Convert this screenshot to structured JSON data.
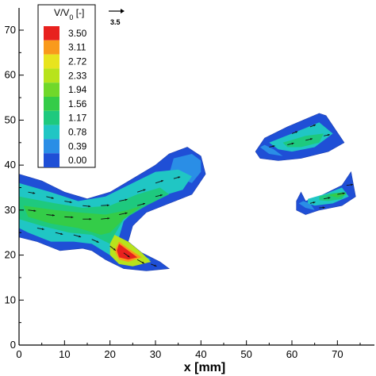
{
  "chart_data": {
    "type": "heatmap",
    "xlabel": "x [mm]",
    "ylabel": "",
    "xlim": [
      0,
      78
    ],
    "ylim": [
      0,
      74
    ],
    "x_ticks": [
      0,
      10,
      20,
      30,
      40,
      50,
      60,
      70
    ],
    "y_ticks": [
      0,
      10,
      20,
      30,
      40,
      50,
      60,
      70
    ],
    "colorbar": {
      "title_main": "V/V",
      "title_sub": "0",
      "title_unit": " [-]",
      "levels": [
        "3.50",
        "3.11",
        "2.72",
        "2.33",
        "1.94",
        "1.56",
        "1.17",
        "0.78",
        "0.39",
        "0.00"
      ],
      "colors": [
        "#e8211e",
        "#f99a1c",
        "#e8e41e",
        "#b8e31c",
        "#70d82a",
        "#34cc48",
        "#1ec97e",
        "#20c6c4",
        "#2a8ee6",
        "#1f4fd6"
      ]
    },
    "reference_vector": {
      "label": "3.5"
    },
    "regions": [
      {
        "name": "main-jet",
        "outline": [
          [
            0,
            38
          ],
          [
            5,
            36.5
          ],
          [
            10,
            34
          ],
          [
            15,
            32.5
          ],
          [
            20,
            34
          ],
          [
            25,
            37
          ],
          [
            30,
            40
          ],
          [
            33,
            42.5
          ],
          [
            37,
            44
          ],
          [
            40,
            42
          ],
          [
            41,
            38
          ],
          [
            38,
            33.5
          ],
          [
            33,
            31.5
          ],
          [
            28,
            29.5
          ],
          [
            25,
            26.5
          ],
          [
            24,
            23
          ],
          [
            27,
            20.5
          ],
          [
            31,
            18.5
          ],
          [
            33,
            17
          ],
          [
            28,
            16.5
          ],
          [
            23,
            17
          ],
          [
            19,
            19
          ],
          [
            16,
            21
          ],
          [
            14,
            21.5
          ],
          [
            9,
            21
          ],
          [
            4,
            23
          ],
          [
            0,
            24
          ]
        ],
        "bands": [
          {
            "level": 1,
            "outline": [
              [
                34,
                41.5
              ],
              [
                38,
                42.5
              ],
              [
                40,
                41
              ],
              [
                40,
                38.5
              ],
              [
                38,
                36
              ],
              [
                33,
                38
              ]
            ]
          },
          {
            "level": 2,
            "outline": [
              [
                0,
                36
              ],
              [
                7,
                34
              ],
              [
                13,
                32
              ],
              [
                19,
                33
              ],
              [
                25,
                36
              ],
              [
                30,
                38.5
              ],
              [
                35,
                39
              ],
              [
                38,
                37.5
              ],
              [
                36,
                34.5
              ],
              [
                31,
                33
              ],
              [
                26,
                30.5
              ],
              [
                23,
                27.5
              ],
              [
                22,
                24
              ],
              [
                25,
                21
              ],
              [
                29,
                19
              ],
              [
                25,
                18.5
              ],
              [
                20,
                20
              ],
              [
                16,
                22.5
              ],
              [
                12,
                23
              ],
              [
                7,
                23
              ],
              [
                2,
                25
              ],
              [
                0,
                26
              ]
            ]
          },
          {
            "level": 3,
            "outline": [
              [
                0,
                33
              ],
              [
                8,
                31.5
              ],
              [
                14,
                30.5
              ],
              [
                20,
                31
              ],
              [
                26,
                33.5
              ],
              [
                31,
                35
              ],
              [
                33,
                33.5
              ],
              [
                28,
                31
              ],
              [
                23,
                28
              ],
              [
                21,
                24.5
              ],
              [
                20,
                22.5
              ],
              [
                16,
                24.5
              ],
              [
                11,
                25
              ],
              [
                5,
                26.5
              ],
              [
                0,
                28
              ]
            ]
          },
          {
            "level": 4,
            "outline": [
              [
                1,
                31
              ],
              [
                8,
                30
              ],
              [
                13,
                29.5
              ],
              [
                19,
                29
              ],
              [
                24,
                30
              ],
              [
                27,
                31
              ],
              [
                23,
                28
              ],
              [
                20,
                25
              ],
              [
                18,
                24.5
              ],
              [
                13,
                26
              ],
              [
                7,
                27
              ],
              [
                2,
                28.5
              ]
            ]
          },
          {
            "level": 6,
            "outline": [
              [
                21,
                24.5
              ],
              [
                24,
                23
              ],
              [
                27,
                20.5
              ],
              [
                29,
                18.5
              ],
              [
                25,
                17.5
              ],
              [
                22,
                18
              ],
              [
                20,
                20
              ],
              [
                20,
                22.5
              ]
            ]
          },
          {
            "level": 8,
            "outline": [
              [
                22,
                23
              ],
              [
                24,
                21.5
              ],
              [
                27,
                19.5
              ],
              [
                24,
                18.5
              ],
              [
                22,
                19
              ],
              [
                21,
                21
              ]
            ]
          },
          {
            "level": 9,
            "outline": [
              [
                22,
                22.5
              ],
              [
                24,
                21
              ],
              [
                26,
                19.5
              ],
              [
                24,
                19
              ],
              [
                22,
                19.5
              ],
              [
                21.5,
                21
              ]
            ]
          }
        ]
      },
      {
        "name": "upper-right-jet",
        "outline": [
          [
            52,
            43
          ],
          [
            54,
            46
          ],
          [
            59,
            48.5
          ],
          [
            66,
            51.5
          ],
          [
            67.5,
            51
          ],
          [
            71.5,
            45
          ],
          [
            68,
            43
          ],
          [
            62,
            41.5
          ],
          [
            57,
            41
          ],
          [
            53,
            41.5
          ]
        ],
        "bands": [
          {
            "level": 1,
            "outline": [
              [
                53,
                44
              ],
              [
                55,
                42.5
              ],
              [
                58,
                42
              ],
              [
                56,
                43.5
              ],
              [
                54,
                44.5
              ]
            ]
          },
          {
            "level": 2,
            "outline": [
              [
                55,
                45
              ],
              [
                60,
                47
              ],
              [
                66,
                49.5
              ],
              [
                69,
                47
              ],
              [
                65,
                44
              ],
              [
                60,
                43
              ],
              [
                57,
                43.5
              ]
            ]
          },
          {
            "level": 3,
            "outline": [
              [
                58,
                45
              ],
              [
                63,
                46.5
              ],
              [
                67,
                47
              ],
              [
                66,
                45
              ],
              [
                62,
                44
              ],
              [
                59,
                44
              ]
            ]
          }
        ]
      },
      {
        "name": "lower-right-jet",
        "outline": [
          [
            62,
            34
          ],
          [
            63,
            32
          ],
          [
            66,
            33
          ],
          [
            71,
            35.5
          ],
          [
            73,
            38.5
          ],
          [
            74,
            33
          ],
          [
            71,
            31
          ],
          [
            66,
            30
          ],
          [
            63,
            29
          ],
          [
            61,
            30
          ],
          [
            61,
            32
          ]
        ],
        "bands": [
          {
            "level": 1,
            "outline": [
              [
                61.5,
                31.5
              ],
              [
                63,
                30.5
              ],
              [
                65,
                30
              ],
              [
                64,
                31.5
              ],
              [
                62.5,
                32
              ]
            ]
          },
          {
            "level": 2,
            "outline": [
              [
                63.5,
                32.5
              ],
              [
                67,
                33.5
              ],
              [
                71,
                35
              ],
              [
                72.5,
                33
              ],
              [
                69,
                31.5
              ],
              [
                65,
                31
              ],
              [
                63.5,
                31.5
              ]
            ]
          },
          {
            "level": 3,
            "outline": [
              [
                66,
                33
              ],
              [
                69,
                33.8
              ],
              [
                72,
                34
              ],
              [
                71,
                32.5
              ],
              [
                68,
                32
              ],
              [
                66,
                32.2
              ]
            ]
          },
          {
            "level": 4,
            "outline": [
              [
                68,
                33.3
              ],
              [
                71,
                34
              ],
              [
                72,
                33.5
              ],
              [
                70,
                32.8
              ]
            ]
          }
        ]
      }
    ],
    "vectors": [
      {
        "x": 2,
        "y": 34,
        "u": 1.6,
        "v": -0.3
      },
      {
        "x": 6,
        "y": 33,
        "u": 1.7,
        "v": -0.4
      },
      {
        "x": 10,
        "y": 32,
        "u": 1.7,
        "v": -0.3
      },
      {
        "x": 14,
        "y": 31,
        "u": 1.8,
        "v": -0.2
      },
      {
        "x": 18,
        "y": 31,
        "u": 1.9,
        "v": 0.1
      },
      {
        "x": 22,
        "y": 32,
        "u": 1.9,
        "v": 0.4
      },
      {
        "x": 26,
        "y": 34,
        "u": 1.9,
        "v": 0.6
      },
      {
        "x": 30,
        "y": 36,
        "u": 1.8,
        "v": 0.6
      },
      {
        "x": 34,
        "y": 37,
        "u": 1.5,
        "v": 0.4
      },
      {
        "x": 2,
        "y": 30,
        "u": 1.8,
        "v": -0.2
      },
      {
        "x": 6,
        "y": 29,
        "u": 1.9,
        "v": -0.2
      },
      {
        "x": 10,
        "y": 28.5,
        "u": 2.0,
        "v": -0.1
      },
      {
        "x": 14,
        "y": 28,
        "u": 2.0,
        "v": 0.0
      },
      {
        "x": 18,
        "y": 28,
        "u": 2.0,
        "v": 0.2
      },
      {
        "x": 22,
        "y": 29,
        "u": 1.9,
        "v": 0.4
      },
      {
        "x": 26,
        "y": 31,
        "u": 1.8,
        "v": 0.5
      },
      {
        "x": 30,
        "y": 33,
        "u": 1.6,
        "v": 0.4
      },
      {
        "x": 4,
        "y": 26,
        "u": 1.6,
        "v": -0.3
      },
      {
        "x": 8,
        "y": 25,
        "u": 1.7,
        "v": -0.4
      },
      {
        "x": 12,
        "y": 24.5,
        "u": 1.7,
        "v": -0.5
      },
      {
        "x": 16,
        "y": 23.5,
        "u": 1.6,
        "v": -0.7
      },
      {
        "x": 20,
        "y": 22,
        "u": 1.3,
        "v": -1.0
      },
      {
        "x": 23,
        "y": 20.5,
        "u": 1.4,
        "v": -1.0
      },
      {
        "x": 26,
        "y": 19,
        "u": 1.6,
        "v": -0.9
      },
      {
        "x": 29,
        "y": 18,
        "u": 1.3,
        "v": -0.5
      },
      {
        "x": 55,
        "y": 44,
        "u": 1.3,
        "v": 0.3
      },
      {
        "x": 59,
        "y": 44.5,
        "u": 1.5,
        "v": 0.4
      },
      {
        "x": 63,
        "y": 45.5,
        "u": 1.6,
        "v": 0.4
      },
      {
        "x": 67,
        "y": 46.5,
        "u": 1.4,
        "v": 0.3
      },
      {
        "x": 60,
        "y": 47,
        "u": 1.3,
        "v": 0.5
      },
      {
        "x": 64,
        "y": 48.5,
        "u": 1.3,
        "v": 0.5
      },
      {
        "x": 64,
        "y": 31.5,
        "u": 1.2,
        "v": 0.3
      },
      {
        "x": 67,
        "y": 32.5,
        "u": 1.5,
        "v": 0.3
      },
      {
        "x": 70,
        "y": 33.5,
        "u": 1.7,
        "v": 0.3
      },
      {
        "x": 72,
        "y": 35.5,
        "u": 1.5,
        "v": 0.2
      },
      {
        "x": 66,
        "y": 30.5,
        "u": 1.3,
        "v": 0.1
      }
    ]
  }
}
